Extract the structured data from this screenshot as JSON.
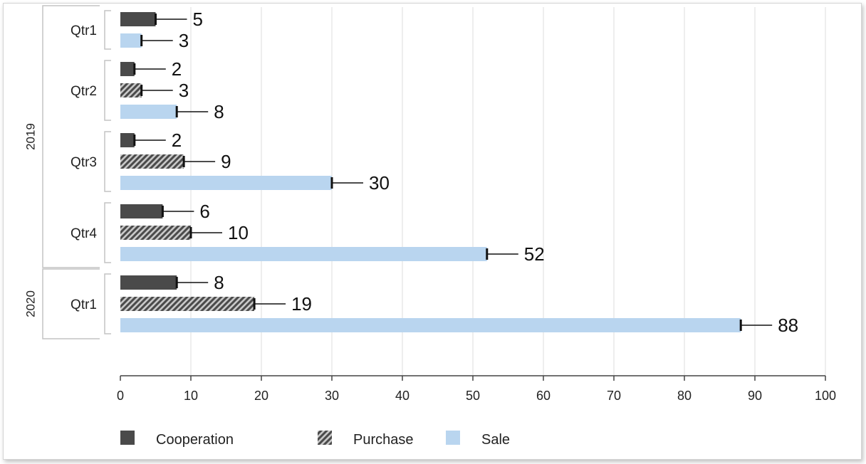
{
  "chart_data": {
    "type": "bar",
    "orientation": "horizontal",
    "title": "",
    "xlabel": "",
    "ylabel": "",
    "xlim": [
      0,
      100
    ],
    "x_ticks": [
      "0",
      "10",
      "20",
      "30",
      "40",
      "50",
      "60",
      "70",
      "80",
      "90",
      "100"
    ],
    "grid": "vertical",
    "legend_position": "bottom-left",
    "error_bars": true,
    "groups": [
      {
        "year": "2019",
        "quarters": [
          {
            "label": "Qtr1",
            "bars": [
              {
                "series": "Cooperation",
                "value": 5,
                "label": "5"
              },
              {
                "series": "Sale",
                "value": 3,
                "label": "3"
              }
            ]
          },
          {
            "label": "Qtr2",
            "bars": [
              {
                "series": "Cooperation",
                "value": 2,
                "label": "2"
              },
              {
                "series": "Purchase",
                "value": 3,
                "label": "3"
              },
              {
                "series": "Sale",
                "value": 8,
                "label": "8"
              }
            ]
          },
          {
            "label": "Qtr3",
            "bars": [
              {
                "series": "Cooperation",
                "value": 2,
                "label": "2"
              },
              {
                "series": "Purchase",
                "value": 9,
                "label": "9"
              },
              {
                "series": "Sale",
                "value": 30,
                "label": "30"
              }
            ]
          },
          {
            "label": "Qtr4",
            "bars": [
              {
                "series": "Cooperation",
                "value": 6,
                "label": "6"
              },
              {
                "series": "Purchase",
                "value": 10,
                "label": "10"
              },
              {
                "series": "Sale",
                "value": 52,
                "label": "52"
              }
            ]
          }
        ]
      },
      {
        "year": "2020",
        "quarters": [
          {
            "label": "Qtr1",
            "bars": [
              {
                "series": "Cooperation",
                "value": 8,
                "label": "8"
              },
              {
                "series": "Purchase",
                "value": 19,
                "label": "19"
              },
              {
                "series": "Sale",
                "value": 88,
                "label": "88"
              }
            ]
          }
        ]
      }
    ],
    "series": [
      {
        "name": "Cooperation",
        "color": "#4a4a4a",
        "pattern": "solid"
      },
      {
        "name": "Purchase",
        "color": "#5a5a5a",
        "pattern": "diagonal-hatch"
      },
      {
        "name": "Sale",
        "color": "#b9d5ef",
        "pattern": "solid"
      }
    ]
  }
}
